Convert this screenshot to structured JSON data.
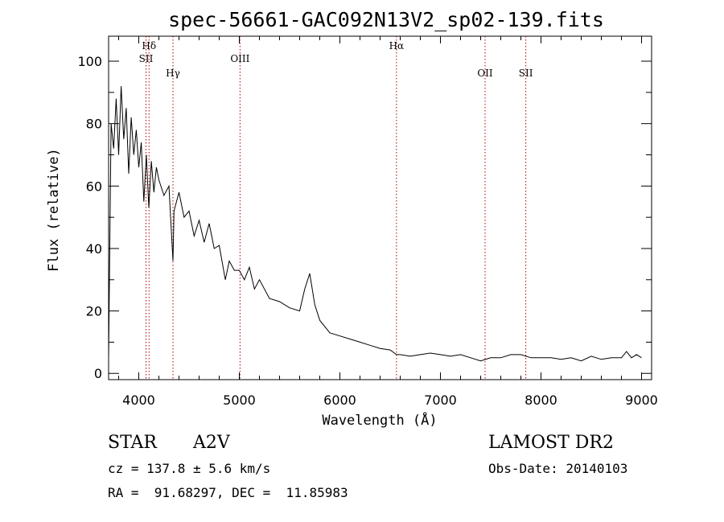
{
  "chart_data": {
    "type": "line",
    "title": "spec-56661-GAC092N13V2_sp02-139.fits",
    "xlabel": "Wavelength (Å)",
    "ylabel": "Flux (relative)",
    "xlim": [
      3700,
      9100
    ],
    "ylim": [
      -2,
      108
    ],
    "xticks": [
      4000,
      5000,
      6000,
      7000,
      8000,
      9000
    ],
    "yticks": [
      0,
      20,
      40,
      60,
      80,
      100
    ],
    "line_color": "#000000",
    "marker_color": "#b00000",
    "series": [
      {
        "x": [
          3700,
          3725,
          3750,
          3775,
          3800,
          3825,
          3850,
          3875,
          3900,
          3925,
          3950,
          3975,
          4000,
          4025,
          4050,
          4075,
          4100,
          4125,
          4150,
          4175,
          4200,
          4250,
          4300,
          4340,
          4350,
          4400,
          4450,
          4500,
          4550,
          4600,
          4650,
          4700,
          4750,
          4800,
          4861,
          4900,
          4950,
          5000,
          5050,
          5100,
          5150,
          5200,
          5300,
          5400,
          5500,
          5600,
          5650,
          5700,
          5750,
          5800,
          5900,
          6000,
          6100,
          6200,
          6300,
          6400,
          6500,
          6563,
          6600,
          6700,
          6800,
          6900,
          7000,
          7100,
          7200,
          7300,
          7400,
          7500,
          7600,
          7700,
          7800,
          7900,
          8000,
          8100,
          8200,
          8300,
          8400,
          8500,
          8600,
          8700,
          8800,
          8850,
          8900,
          8950,
          9000
        ],
        "y": [
          5,
          80,
          72,
          88,
          70,
          92,
          75,
          85,
          64,
          82,
          70,
          78,
          66,
          74,
          55,
          70,
          53,
          68,
          58,
          66,
          62,
          57,
          60,
          36,
          52,
          58,
          50,
          52,
          44,
          49,
          42,
          48,
          40,
          41,
          30,
          36,
          33,
          33,
          30,
          34,
          27,
          30,
          24,
          23,
          21,
          20,
          27,
          32,
          22,
          17,
          13,
          12,
          11,
          10,
          9,
          8,
          7.5,
          6,
          6,
          5.5,
          6,
          6.5,
          6,
          5.5,
          6,
          5,
          4,
          5,
          5,
          6,
          6,
          5,
          5,
          5,
          4.5,
          5,
          4,
          5.5,
          4.5,
          5,
          5,
          7,
          5,
          6,
          5
        ]
      }
    ],
    "lines": [
      {
        "wl": 4072,
        "label": "SII",
        "row": 2
      },
      {
        "wl": 4102,
        "label": "Hδ",
        "row": 1
      },
      {
        "wl": 4340,
        "label": "Hγ",
        "row": 3
      },
      {
        "wl": 5007,
        "label": "OIII",
        "row": 2
      },
      {
        "wl": 6563,
        "label": "Hα",
        "row": 1
      },
      {
        "wl": 7444,
        "label": "OII",
        "row": 3
      },
      {
        "wl": 7849,
        "label": "SII",
        "row": 3
      }
    ]
  },
  "info": {
    "obj_class": "STAR",
    "subclass": "A2V",
    "survey": "LAMOST DR2",
    "cz": "cz = 137.8 ± 5.6 km/s",
    "obs_date": "Obs-Date: 20140103",
    "coords": "RA =  91.68297, DEC =  11.85983"
  }
}
